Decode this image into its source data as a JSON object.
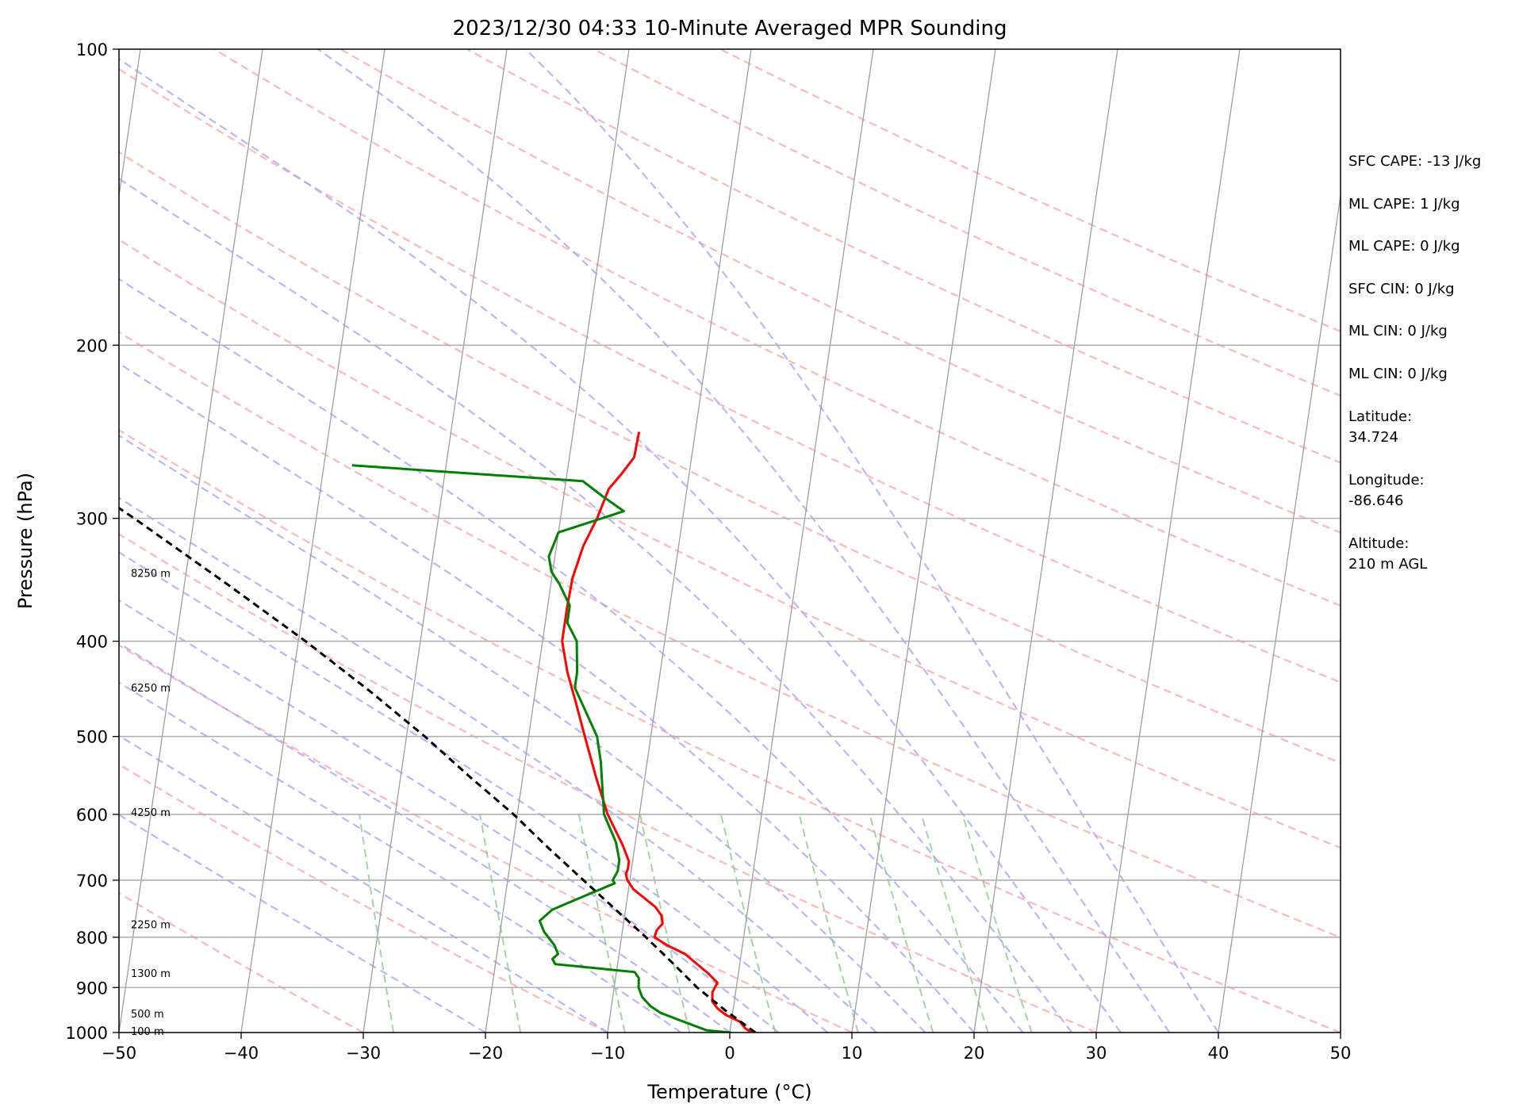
{
  "chart_data": {
    "type": "line",
    "title": "2023/12/30 04:33 10-Minute Averaged MPR Sounding",
    "xlabel": "Temperature (°C)",
    "ylabel": "Pressure (hPa)",
    "xlim": [
      -50,
      50
    ],
    "ylim": [
      1000,
      100
    ],
    "y_scale": "log",
    "skew": true,
    "x_ticks": [
      "−50",
      "−40",
      "−30",
      "−20",
      "−10",
      "0",
      "10",
      "20",
      "30",
      "40",
      "50"
    ],
    "y_ticks": [
      100,
      200,
      300,
      400,
      500,
      600,
      700,
      800,
      900,
      1000
    ],
    "grid": true,
    "altitude_labels": [
      {
        "label": "8250 m",
        "p": 341
      },
      {
        "label": "6250 m",
        "p": 446
      },
      {
        "label": "4250 m",
        "p": 597
      },
      {
        "label": "2250 m",
        "p": 776
      },
      {
        "label": "1300 m",
        "p": 870
      },
      {
        "label": "500 m",
        "p": 956
      },
      {
        "label": "100 m",
        "p": 996
      }
    ],
    "series": [
      {
        "role": "temperature",
        "color": "#ff0000",
        "points": [
          [
            1000,
            1.8
          ],
          [
            990,
            1.2
          ],
          [
            975,
            0.7
          ],
          [
            960,
            -0.5
          ],
          [
            945,
            -1.3
          ],
          [
            930,
            -1.8
          ],
          [
            910,
            -1.9
          ],
          [
            890,
            -1.6
          ],
          [
            870,
            -2.5
          ],
          [
            850,
            -3.6
          ],
          [
            832,
            -4.6
          ],
          [
            815,
            -6.2
          ],
          [
            800,
            -7.3
          ],
          [
            787,
            -7.2
          ],
          [
            775,
            -6.8
          ],
          [
            760,
            -7.0
          ],
          [
            745,
            -7.6
          ],
          [
            730,
            -8.6
          ],
          [
            715,
            -9.6
          ],
          [
            700,
            -10.2
          ],
          [
            690,
            -10.4
          ],
          [
            682,
            -10.3
          ],
          [
            670,
            -10.3
          ],
          [
            645,
            -11.0
          ],
          [
            600,
            -12.6
          ],
          [
            550,
            -14.0
          ],
          [
            500,
            -15.4
          ],
          [
            460,
            -16.6
          ],
          [
            430,
            -17.6
          ],
          [
            400,
            -18.4
          ],
          [
            370,
            -18.4
          ],
          [
            345,
            -18.3
          ],
          [
            320,
            -17.8
          ],
          [
            300,
            -17.0
          ],
          [
            280,
            -16.4
          ],
          [
            270,
            -15.5
          ],
          [
            260,
            -14.7
          ],
          [
            245,
            -14.6
          ]
        ]
      },
      {
        "role": "dewpoint",
        "color": "#007f00",
        "points": [
          [
            1000,
            0.1
          ],
          [
            995,
            -1.9
          ],
          [
            970,
            -4.4
          ],
          [
            955,
            -5.9
          ],
          [
            940,
            -6.8
          ],
          [
            920,
            -7.6
          ],
          [
            900,
            -8.0
          ],
          [
            880,
            -8.1
          ],
          [
            868,
            -8.5
          ],
          [
            852,
            -15.1
          ],
          [
            842,
            -15.4
          ],
          [
            832,
            -15.0
          ],
          [
            815,
            -15.4
          ],
          [
            790,
            -16.4
          ],
          [
            770,
            -16.9
          ],
          [
            750,
            -16.0
          ],
          [
            728,
            -13.7
          ],
          [
            705,
            -11.2
          ],
          [
            700,
            -11.4
          ],
          [
            685,
            -11.1
          ],
          [
            668,
            -11.1
          ],
          [
            640,
            -11.6
          ],
          [
            600,
            -12.9
          ],
          [
            560,
            -13.4
          ],
          [
            530,
            -13.8
          ],
          [
            500,
            -14.4
          ],
          [
            470,
            -15.7
          ],
          [
            446,
            -16.8
          ],
          [
            430,
            -16.8
          ],
          [
            400,
            -17.2
          ],
          [
            383,
            -18.2
          ],
          [
            368,
            -18.2
          ],
          [
            350,
            -19.3
          ],
          [
            340,
            -20.1
          ],
          [
            328,
            -20.5
          ],
          [
            310,
            -20.0
          ],
          [
            295,
            -14.9
          ],
          [
            285,
            -16.8
          ],
          [
            275,
            -18.6
          ],
          [
            265,
            -37.7
          ]
        ]
      },
      {
        "role": "parcel",
        "color": "#000000",
        "style": "dashed",
        "points": [
          [
            1000,
            2.1
          ],
          [
            950,
            -0.6
          ],
          [
            900,
            -3.2
          ],
          [
            850,
            -5.5
          ],
          [
            800,
            -8.0
          ],
          [
            750,
            -10.8
          ],
          [
            700,
            -13.8
          ],
          [
            650,
            -17.0
          ],
          [
            600,
            -20.3
          ],
          [
            550,
            -24.3
          ],
          [
            500,
            -28.5
          ],
          [
            450,
            -33.5
          ],
          [
            400,
            -39.4
          ],
          [
            350,
            -46.5
          ],
          [
            300,
            -54.9
          ],
          [
            265,
            -62.0
          ]
        ]
      }
    ],
    "background_lines": {
      "isotherms": "#9e9e9e",
      "dry_adiabats": "#ffa0a0",
      "moist_adiabats": "#9f9fff",
      "mixing_ratios": "#80c080"
    }
  },
  "info": {
    "sfc_cape": "SFC CAPE: -13 J/kg",
    "ml_cape_1": "ML CAPE: 1 J/kg",
    "ml_cape_2": "ML CAPE: 0 J/kg",
    "sfc_cin": "SFC CIN: 0 J/kg",
    "ml_cin_1": "ML CIN: 0 J/kg",
    "ml_cin_2": "ML CIN: 0 J/kg",
    "latitude_label": "Latitude:",
    "latitude_value": "34.724",
    "longitude_label": "Longitude:",
    "longitude_value": "-86.646",
    "altitude_label": "Altitude:",
    "altitude_value": "210 m AGL"
  }
}
